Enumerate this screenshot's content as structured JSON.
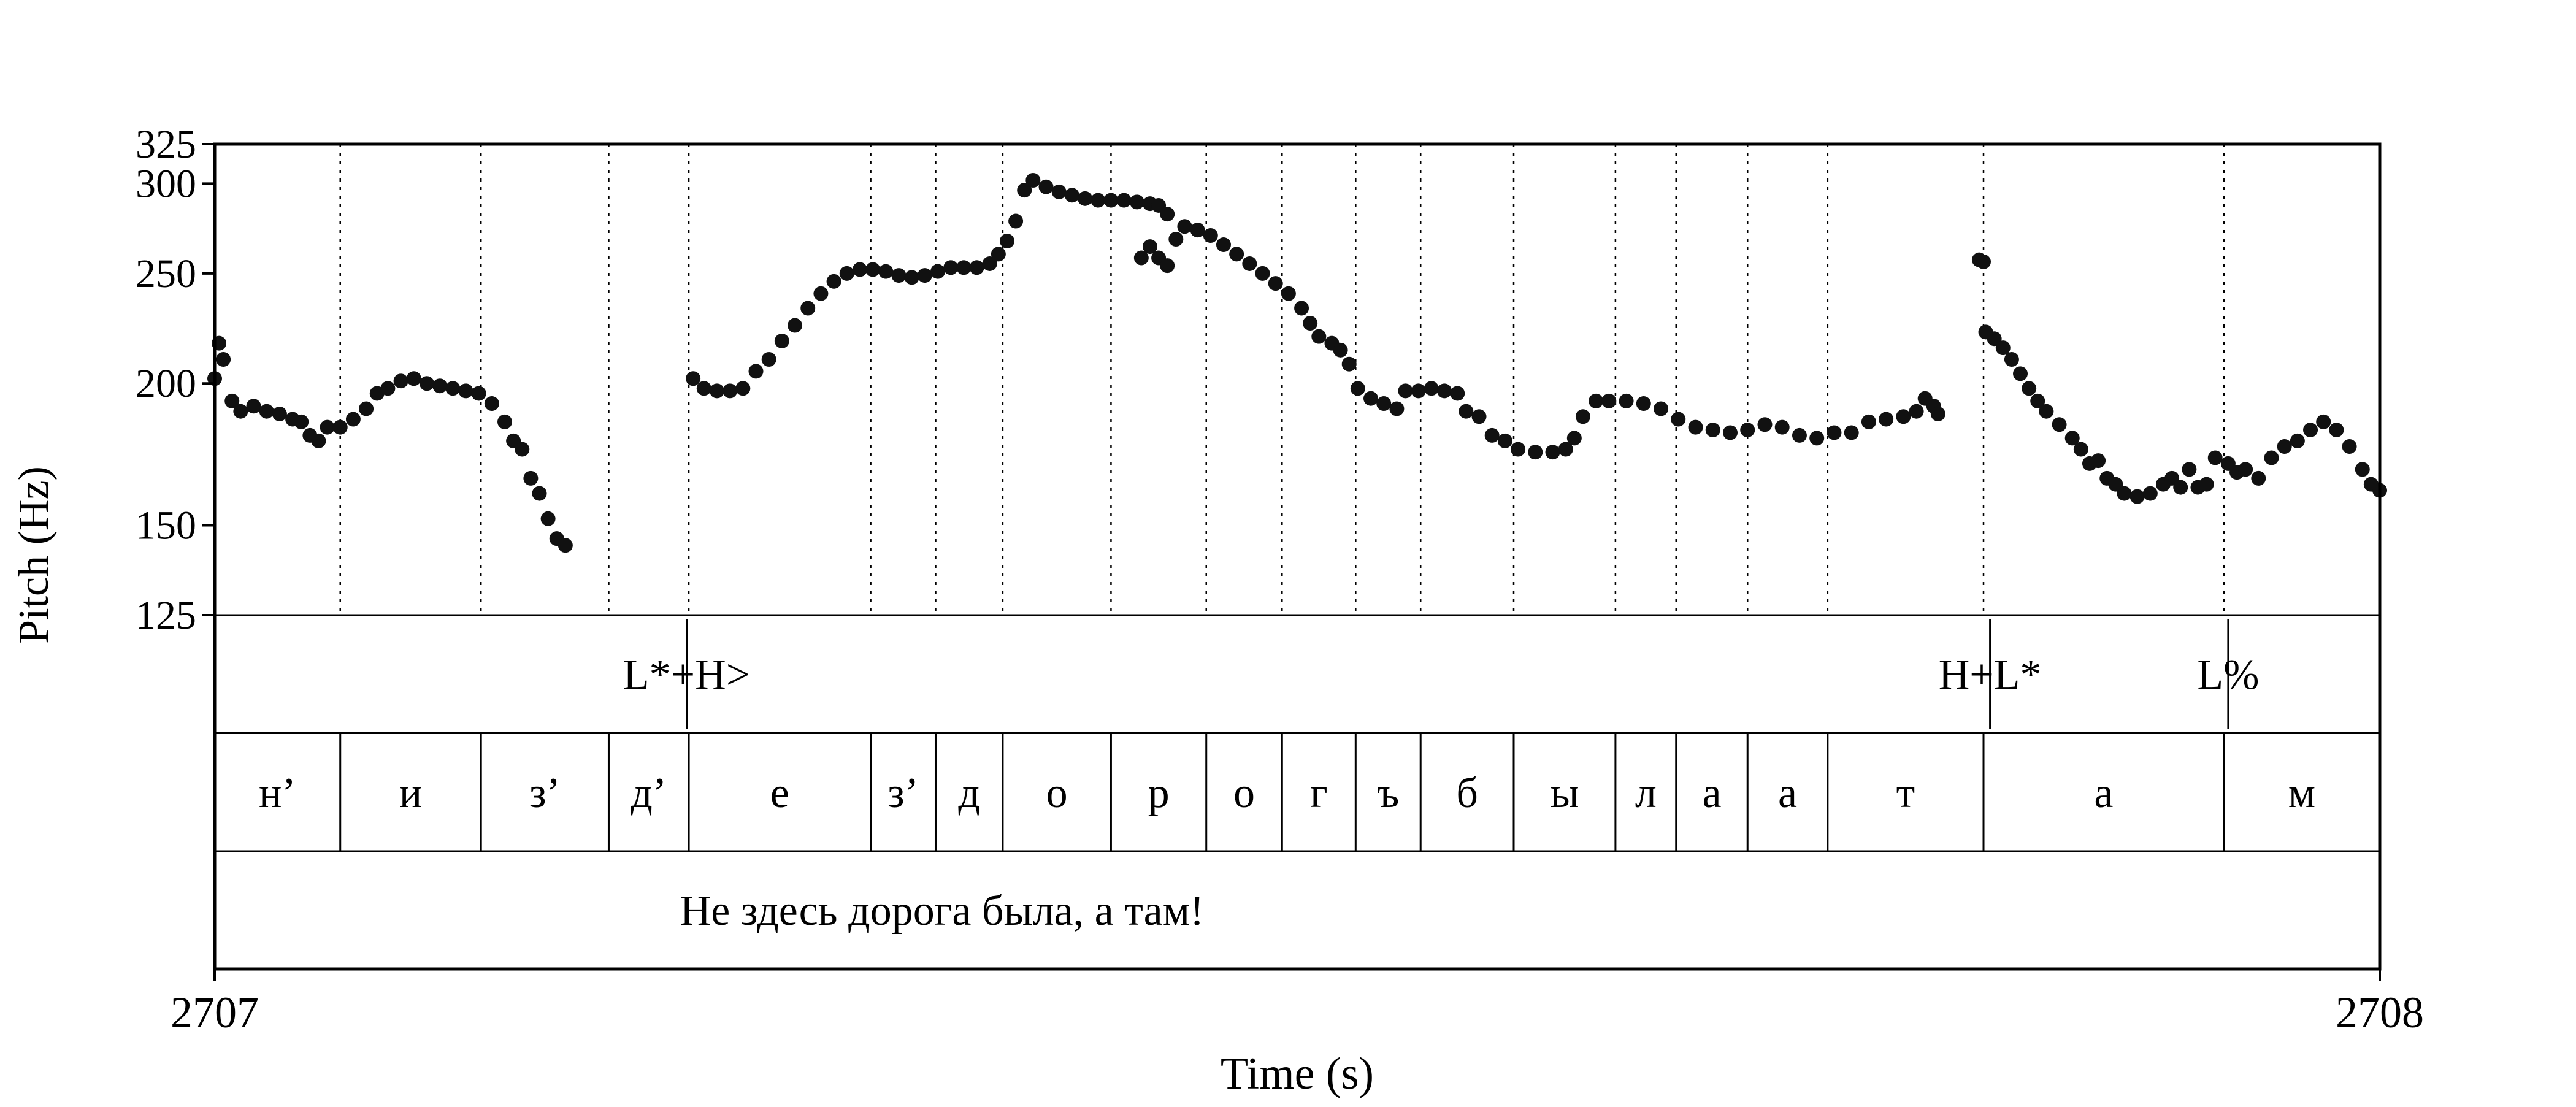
{
  "chart_data": {
    "type": "scatter",
    "xlabel": "Time (s)",
    "ylabel": "Pitch (Hz)",
    "xlim": [
      2707,
      2708
    ],
    "ylim": [
      125,
      325
    ],
    "x_ticks": [
      "2707",
      "2708"
    ],
    "y_ticks": [
      {
        "value": 325,
        "label": "325"
      },
      {
        "value": 300,
        "label": "300"
      },
      {
        "value": 250,
        "label": "250"
      },
      {
        "value": 200,
        "label": "200"
      },
      {
        "value": 150,
        "label": "150"
      },
      {
        "value": 125,
        "label": "125"
      }
    ],
    "pitch_segments": [
      [
        [
          2707.0,
          202
        ],
        [
          2707.002,
          217
        ],
        [
          2707.004,
          210
        ],
        [
          2707.008,
          193
        ],
        [
          2707.012,
          189
        ],
        [
          2707.018,
          191
        ],
        [
          2707.024,
          189
        ],
        [
          2707.03,
          188
        ],
        [
          2707.036,
          186
        ],
        [
          2707.04,
          185
        ],
        [
          2707.044,
          180
        ],
        [
          2707.048,
          178
        ],
        [
          2707.052,
          183
        ],
        [
          2707.058,
          183
        ],
        [
          2707.064,
          186
        ],
        [
          2707.07,
          190
        ],
        [
          2707.075,
          196
        ],
        [
          2707.08,
          198
        ],
        [
          2707.086,
          201
        ],
        [
          2707.092,
          202
        ],
        [
          2707.098,
          200
        ],
        [
          2707.104,
          199
        ],
        [
          2707.11,
          198
        ],
        [
          2707.116,
          197
        ],
        [
          2707.122,
          196
        ],
        [
          2707.128,
          192
        ],
        [
          2707.134,
          185
        ],
        [
          2707.138,
          178
        ],
        [
          2707.142,
          175
        ],
        [
          2707.146,
          165
        ],
        [
          2707.15,
          160
        ],
        [
          2707.154,
          152
        ],
        [
          2707.158,
          146
        ],
        [
          2707.162,
          144
        ]
      ],
      [
        [
          2707.221,
          202
        ],
        [
          2707.226,
          198
        ],
        [
          2707.232,
          197
        ],
        [
          2707.238,
          197
        ],
        [
          2707.244,
          198
        ],
        [
          2707.25,
          205
        ],
        [
          2707.256,
          210
        ],
        [
          2707.262,
          218
        ],
        [
          2707.268,
          225
        ],
        [
          2707.274,
          233
        ],
        [
          2707.28,
          240
        ],
        [
          2707.286,
          246
        ],
        [
          2707.292,
          250
        ],
        [
          2707.298,
          252
        ],
        [
          2707.304,
          252
        ],
        [
          2707.31,
          251
        ],
        [
          2707.316,
          249
        ],
        [
          2707.322,
          248
        ],
        [
          2707.328,
          249
        ],
        [
          2707.334,
          251
        ],
        [
          2707.34,
          253
        ],
        [
          2707.346,
          253
        ],
        [
          2707.352,
          253
        ],
        [
          2707.358,
          255
        ],
        [
          2707.362,
          260
        ],
        [
          2707.366,
          267
        ],
        [
          2707.37,
          278
        ],
        [
          2707.374,
          296
        ],
        [
          2707.378,
          302
        ],
        [
          2707.384,
          298
        ],
        [
          2707.39,
          295
        ],
        [
          2707.396,
          293
        ],
        [
          2707.402,
          291
        ],
        [
          2707.408,
          290
        ],
        [
          2707.414,
          290
        ],
        [
          2707.42,
          290
        ],
        [
          2707.426,
          289
        ],
        [
          2707.432,
          288
        ],
        [
          2707.436,
          287
        ],
        [
          2707.44,
          282
        ]
      ],
      [
        [
          2707.428,
          258
        ],
        [
          2707.432,
          264
        ],
        [
          2707.436,
          258
        ],
        [
          2707.44,
          254
        ],
        [
          2707.444,
          268
        ],
        [
          2707.448,
          275
        ],
        [
          2707.454,
          273
        ],
        [
          2707.46,
          270
        ],
        [
          2707.466,
          265
        ],
        [
          2707.472,
          260
        ],
        [
          2707.478,
          255
        ],
        [
          2707.484,
          250
        ],
        [
          2707.49,
          245
        ],
        [
          2707.496,
          240
        ],
        [
          2707.502,
          233
        ],
        [
          2707.506,
          226
        ],
        [
          2707.51,
          220
        ],
        [
          2707.516,
          217
        ],
        [
          2707.52,
          214
        ],
        [
          2707.524,
          208
        ],
        [
          2707.528,
          198
        ],
        [
          2707.534,
          194
        ],
        [
          2707.54,
          192
        ],
        [
          2707.546,
          190
        ],
        [
          2707.55,
          197
        ],
        [
          2707.556,
          197
        ],
        [
          2707.562,
          198
        ],
        [
          2707.568,
          197
        ],
        [
          2707.574,
          196
        ],
        [
          2707.578,
          189
        ],
        [
          2707.584,
          187
        ],
        [
          2707.59,
          180
        ],
        [
          2707.596,
          178
        ],
        [
          2707.602,
          175
        ],
        [
          2707.61,
          174
        ],
        [
          2707.618,
          174
        ],
        [
          2707.624,
          175
        ],
        [
          2707.628,
          179
        ],
        [
          2707.632,
          187
        ],
        [
          2707.638,
          193
        ],
        [
          2707.644,
          193
        ],
        [
          2707.652,
          193
        ],
        [
          2707.66,
          192
        ],
        [
          2707.668,
          190
        ],
        [
          2707.676,
          186
        ],
        [
          2707.684,
          183
        ],
        [
          2707.692,
          182
        ],
        [
          2707.7,
          181
        ],
        [
          2707.708,
          182
        ],
        [
          2707.716,
          184
        ],
        [
          2707.724,
          183
        ],
        [
          2707.732,
          180
        ],
        [
          2707.74,
          179
        ],
        [
          2707.748,
          181
        ],
        [
          2707.756,
          181
        ],
        [
          2707.764,
          185
        ],
        [
          2707.772,
          186
        ],
        [
          2707.78,
          187
        ],
        [
          2707.786,
          189
        ],
        [
          2707.79,
          194
        ],
        [
          2707.794,
          191
        ],
        [
          2707.796,
          188
        ]
      ],
      [
        [
          2707.815,
          257
        ],
        [
          2707.817,
          256
        ]
      ],
      [
        [
          2707.818,
          222
        ],
        [
          2707.822,
          219
        ],
        [
          2707.826,
          215
        ],
        [
          2707.83,
          210
        ],
        [
          2707.834,
          204
        ],
        [
          2707.838,
          198
        ],
        [
          2707.842,
          193
        ],
        [
          2707.846,
          189
        ],
        [
          2707.852,
          184
        ],
        [
          2707.858,
          179
        ],
        [
          2707.862,
          175
        ],
        [
          2707.866,
          170
        ],
        [
          2707.87,
          171
        ],
        [
          2707.874,
          165
        ],
        [
          2707.878,
          163
        ],
        [
          2707.882,
          160
        ],
        [
          2707.888,
          159
        ],
        [
          2707.894,
          160
        ],
        [
          2707.9,
          163
        ],
        [
          2707.904,
          165
        ],
        [
          2707.908,
          162
        ],
        [
          2707.912,
          168
        ],
        [
          2707.916,
          162
        ],
        [
          2707.92,
          163
        ],
        [
          2707.924,
          172
        ],
        [
          2707.93,
          170
        ],
        [
          2707.934,
          167
        ],
        [
          2707.938,
          168
        ],
        [
          2707.944,
          165
        ],
        [
          2707.95,
          172
        ],
        [
          2707.956,
          176
        ],
        [
          2707.962,
          178
        ],
        [
          2707.968,
          182
        ],
        [
          2707.974,
          185
        ],
        [
          2707.98,
          182
        ],
        [
          2707.986,
          176
        ],
        [
          2707.992,
          168
        ],
        [
          2707.996,
          163
        ],
        [
          2708.0,
          161
        ]
      ]
    ],
    "tones": [
      {
        "label": "L*+H>",
        "t": 2707.218
      },
      {
        "label": "H+L*",
        "t": 2707.82
      },
      {
        "label": "L%",
        "t": 2707.93
      }
    ],
    "segments": [
      {
        "label": "н’",
        "start": 2707.0,
        "end": 2707.058
      },
      {
        "label": "и",
        "start": 2707.058,
        "end": 2707.123
      },
      {
        "label": "з’",
        "start": 2707.123,
        "end": 2707.182
      },
      {
        "label": "д’",
        "start": 2707.182,
        "end": 2707.219
      },
      {
        "label": "е",
        "start": 2707.219,
        "end": 2707.303
      },
      {
        "label": "з’",
        "start": 2707.303,
        "end": 2707.333
      },
      {
        "label": "д",
        "start": 2707.333,
        "end": 2707.364
      },
      {
        "label": "о",
        "start": 2707.364,
        "end": 2707.414
      },
      {
        "label": "р",
        "start": 2707.414,
        "end": 2707.458
      },
      {
        "label": "о",
        "start": 2707.458,
        "end": 2707.493
      },
      {
        "label": "г",
        "start": 2707.493,
        "end": 2707.527
      },
      {
        "label": "ъ",
        "start": 2707.527,
        "end": 2707.557
      },
      {
        "label": "б",
        "start": 2707.557,
        "end": 2707.6
      },
      {
        "label": "ы",
        "start": 2707.6,
        "end": 2707.647
      },
      {
        "label": "л",
        "start": 2707.647,
        "end": 2707.675
      },
      {
        "label": "а",
        "start": 2707.675,
        "end": 2707.708
      },
      {
        "label": "а",
        "start": 2707.708,
        "end": 2707.745
      },
      {
        "label": "т",
        "start": 2707.745,
        "end": 2707.817
      },
      {
        "label": "а",
        "start": 2707.817,
        "end": 2707.928
      },
      {
        "label": "м",
        "start": 2707.928,
        "end": 2708.0
      }
    ],
    "sentence": "Не здесь дорога была, а там!"
  }
}
